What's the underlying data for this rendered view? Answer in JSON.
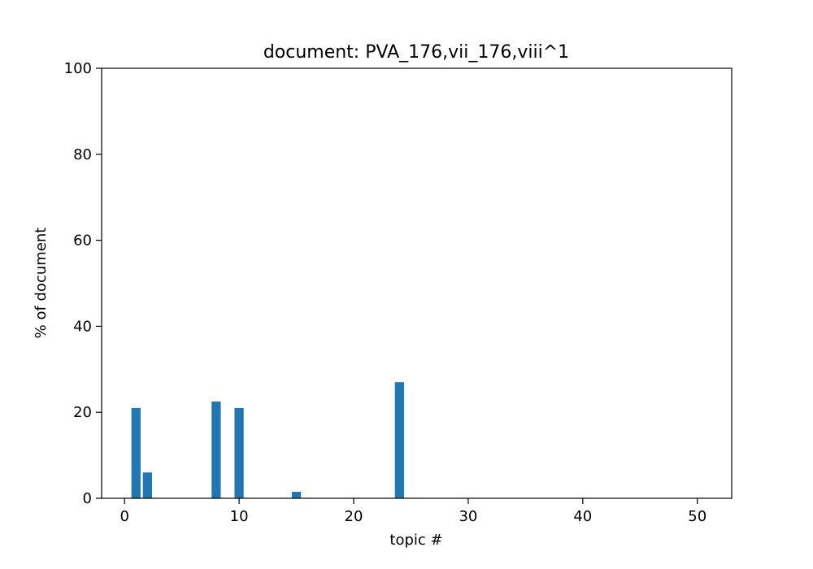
{
  "chart_data": {
    "type": "bar",
    "title": "document: PVA_176,vii_176,viii^1",
    "xlabel": "topic #",
    "ylabel": "% of document",
    "xlim": [
      -2,
      53
    ],
    "ylim": [
      0,
      100
    ],
    "xticks": [
      0,
      10,
      20,
      30,
      40,
      50
    ],
    "yticks": [
      0,
      20,
      40,
      60,
      80,
      100
    ],
    "grid": false,
    "bar_color": "#1f77b4",
    "x": [
      0,
      1,
      2,
      3,
      4,
      5,
      6,
      7,
      8,
      9,
      10,
      11,
      12,
      13,
      14,
      15,
      16,
      17,
      18,
      19,
      20,
      21,
      22,
      23,
      24,
      25,
      26,
      27,
      28,
      29,
      30,
      31,
      32,
      33,
      34,
      35,
      36,
      37,
      38,
      39,
      40,
      41,
      42,
      43,
      44,
      45,
      46,
      47,
      48,
      49,
      50
    ],
    "values": [
      0,
      21,
      6,
      0,
      0,
      0,
      0,
      0,
      22.5,
      0,
      21,
      0,
      0,
      0,
      0,
      1.5,
      0,
      0,
      0,
      0,
      0,
      0,
      0,
      0,
      27,
      0,
      0,
      0,
      0,
      0,
      0,
      0,
      0,
      0,
      0,
      0,
      0,
      0,
      0,
      0,
      0,
      0,
      0,
      0,
      0,
      0,
      0,
      0,
      0,
      0,
      0
    ]
  }
}
